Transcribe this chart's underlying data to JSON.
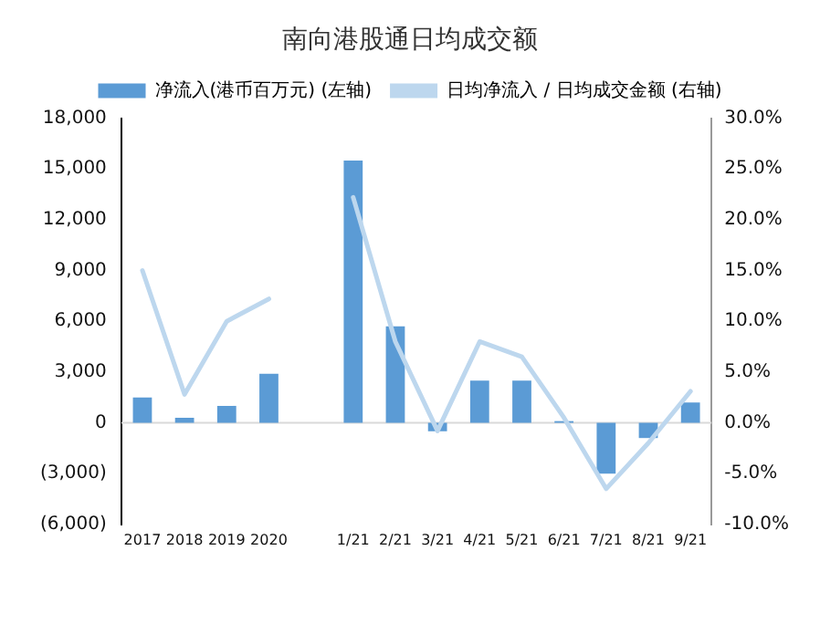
{
  "chart_data": {
    "type": "bar",
    "title": "南向港股通日均成交额",
    "categories": [
      "2017",
      "2018",
      "2019",
      "2020",
      null,
      "1/21",
      "2/21",
      "3/21",
      "4/21",
      "5/21",
      "6/21",
      "7/21",
      "8/21",
      "9/21"
    ],
    "series": [
      {
        "name": "净流入(港币百万元) (左轴)",
        "color": "#5b9bd5",
        "values": [
          1500,
          300,
          1000,
          2900,
          null,
          15500,
          5700,
          -500,
          2500,
          2500,
          100,
          -3000,
          -900,
          1200
        ]
      },
      {
        "name": "日均净流入 / 日均成交金额 (右轴)",
        "type": "line",
        "axis": "y2",
        "color": "#bdd7ee",
        "values": [
          15.0,
          2.8,
          10.0,
          12.2,
          null,
          22.2,
          8.0,
          -0.8,
          8.0,
          6.5,
          0.5,
          -6.5,
          -2.0,
          3.1
        ]
      }
    ],
    "ylim": [
      -6000,
      18000
    ],
    "yticks": [
      {
        "value": -6000,
        "label": "(6,000)"
      },
      {
        "value": -3000,
        "label": "(3,000)"
      },
      0,
      {
        "value": 3000,
        "label": "3,000"
      },
      {
        "value": 6000,
        "label": "6,000"
      },
      {
        "value": 9000,
        "label": "9,000"
      },
      {
        "value": 12000,
        "label": "12,000"
      },
      {
        "value": 15000,
        "label": "15,000"
      },
      {
        "value": 18000,
        "label": "18,000"
      }
    ],
    "y2lim": [
      -10,
      30
    ],
    "y2ticks": [
      {
        "value": -10,
        "label": "-10.0%"
      },
      {
        "value": -5,
        "label": "-5.0%"
      },
      {
        "value": 0,
        "label": "0.0%"
      },
      {
        "value": 5,
        "label": "5.0%"
      },
      {
        "value": 10,
        "label": "10.0%"
      },
      {
        "value": 15,
        "label": "15.0%"
      },
      {
        "value": 20,
        "label": "20.0%"
      },
      {
        "value": 25,
        "label": "25.0%"
      },
      {
        "value": 30,
        "label": "30.0%"
      }
    ],
    "ref_lines": [
      {
        "axis": "y",
        "value": 0,
        "color": "#d9d9d9"
      }
    ],
    "legend": "top",
    "grid": false,
    "marker": "none"
  }
}
